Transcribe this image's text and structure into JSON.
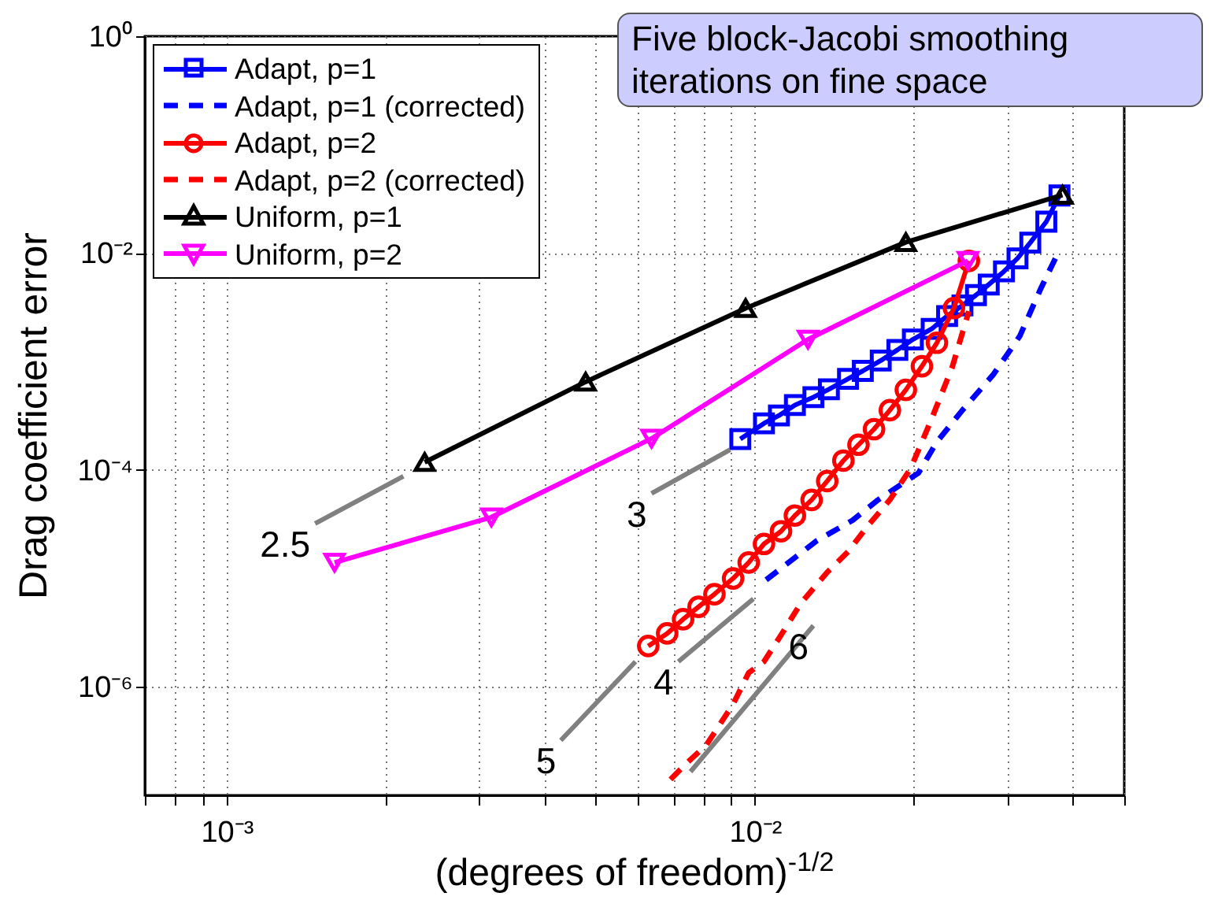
{
  "chart_data": {
    "type": "line",
    "xlabel": "(degrees of freedom)$^{-1/2}$",
    "ylabel": "Drag coefficient error",
    "log": "xy",
    "grid": true,
    "legend": "top left",
    "xlim": [
      0.0007,
      0.05
    ],
    "ylim": [
      1e-07,
      1
    ],
    "xticks": [
      {
        "value": 0.0007,
        "label": null
      },
      {
        "value": 0.0008,
        "label": null
      },
      {
        "value": 0.0009,
        "label": null
      },
      {
        "value": 0.001,
        "label": "10⁻³"
      },
      {
        "value": 0.002,
        "label": null
      },
      {
        "value": 0.003,
        "label": null
      },
      {
        "value": 0.004,
        "label": null
      },
      {
        "value": 0.005,
        "label": null
      },
      {
        "value": 0.006,
        "label": null
      },
      {
        "value": 0.007,
        "label": null
      },
      {
        "value": 0.008,
        "label": null
      },
      {
        "value": 0.009,
        "label": null
      },
      {
        "value": 0.01,
        "label": "10⁻²"
      },
      {
        "value": 0.02,
        "label": null
      },
      {
        "value": 0.03,
        "label": null
      },
      {
        "value": 0.04,
        "label": null
      },
      {
        "value": 0.05,
        "label": null
      }
    ],
    "yticks": [
      {
        "value": 1e-06,
        "label": "10⁻⁶"
      },
      {
        "value": 0.0001,
        "label": "10⁻⁴"
      },
      {
        "value": 0.01,
        "label": "10⁻²"
      },
      {
        "value": 1,
        "label": "10⁰"
      }
    ],
    "series": [
      {
        "name": "Adapt, p=1",
        "color": "#0000ff",
        "type": "line",
        "marker": "square",
        "line_style": "solid",
        "x": [
          0.00938,
          0.0104,
          0.0111,
          0.0119,
          0.0129,
          0.0138,
          0.015,
          0.016,
          0.0173,
          0.0186,
          0.0199,
          0.0216,
          0.0231,
          0.0247,
          0.0262,
          0.0277,
          0.0296,
          0.0314,
          0.0332,
          0.0356,
          0.0377
        ],
        "values": [
          0.000193,
          0.000269,
          0.000318,
          0.000397,
          0.000469,
          0.000555,
          0.000693,
          0.00082,
          0.00102,
          0.00128,
          0.0016,
          0.002,
          0.00263,
          0.00329,
          0.0041,
          0.00513,
          0.00678,
          0.00895,
          0.0125,
          0.0195,
          0.034
        ]
      },
      {
        "name": "Adapt, p=1 (corrected)",
        "color": "#0000ff",
        "type": "line",
        "marker": "none",
        "line_style": "dashed",
        "x": [
          0.0105,
          0.0131,
          0.0153,
          0.0171,
          0.0204,
          0.0221,
          0.0247,
          0.0283,
          0.0317,
          0.0347,
          0.0377
        ],
        "values": [
          9.7e-06,
          2.23e-05,
          3.44e-05,
          5.3e-05,
          9.4e-05,
          0.000182,
          0.000356,
          0.000766,
          0.00171,
          0.00464,
          0.0107
        ]
      },
      {
        "name": "Adapt, p=2",
        "color": "#ff0000",
        "type": "line",
        "marker": "circle",
        "line_style": "solid",
        "x": [
          0.00628,
          0.00682,
          0.00731,
          0.00782,
          0.00838,
          0.00909,
          0.00973,
          0.0104,
          0.0112,
          0.0119,
          0.0128,
          0.0137,
          0.0147,
          0.0157,
          0.0168,
          0.018,
          0.0193,
          0.0207,
          0.0221,
          0.0238,
          0.0254
        ],
        "values": [
          2.38e-06,
          3.11e-06,
          4.2e-06,
          5.48e-06,
          7.16e-06,
          1e-05,
          1.4e-05,
          2.08e-05,
          2.72e-05,
          3.8e-05,
          5.3e-05,
          7.9e-05,
          0.000122,
          0.000171,
          0.000238,
          0.000356,
          0.000548,
          0.000906,
          0.00149,
          0.00311,
          0.00847
        ]
      },
      {
        "name": "Adapt, p=2 (corrected)",
        "color": "#ff0000",
        "type": "line",
        "marker": "none",
        "line_style": "dashed",
        "x": [
          0.00692,
          0.0074,
          0.00809,
          0.00909,
          0.00973,
          0.0104,
          0.0112,
          0.0122,
          0.0137,
          0.015,
          0.0164,
          0.018,
          0.0197,
          0.0215,
          0.0236,
          0.0254
        ],
        "values": [
          1.4e-07,
          1.95e-07,
          2.91e-07,
          6.93e-07,
          1.35e-06,
          1.71e-06,
          3e-06,
          5.86e-06,
          1.14e-05,
          1.76e-05,
          3.11e-05,
          5.3e-05,
          0.000103,
          0.000281,
          0.000875,
          0.00291
        ]
      },
      {
        "name": "Uniform, p=1",
        "color": "#000000",
        "type": "line",
        "marker": "triangle",
        "line_style": "solid",
        "x": [
          0.00237,
          0.00478,
          0.0096,
          0.0193,
          0.0382
        ],
        "values": [
          0.000118,
          0.00065,
          0.0031,
          0.0126,
          0.0344
        ]
      },
      {
        "name": "Uniform, p=2",
        "color": "#ff00ff",
        "type": "line",
        "marker": "triangle-down",
        "line_style": "solid",
        "x": [
          0.0016,
          0.00317,
          0.00637,
          0.0126,
          0.0253
        ],
        "values": [
          1.4e-05,
          3.67e-05,
          0.000195,
          0.0016,
          0.0085
        ]
      },
      {
        "color": "#808080",
        "type": "line",
        "marker": "none",
        "line_style": "solid",
        "x": [
          0.00147,
          0.00216
        ],
        "values": [
          3.21e-05,
          8.75e-05
        ]
      },
      {
        "color": "#808080",
        "type": "line",
        "marker": "none",
        "line_style": "solid",
        "x": [
          0.00637,
          0.00897
        ],
        "values": [
          6.07e-05,
          0.000154
        ]
      },
      {
        "color": "#808080",
        "type": "line",
        "marker": "none",
        "line_style": "solid",
        "x": [
          0.00716,
          0.00993
        ],
        "values": [
          1.71e-06,
          6.49e-06
        ]
      },
      {
        "color": "#808080",
        "type": "line",
        "marker": "none",
        "line_style": "solid",
        "x": [
          0.00429,
          0.00594
        ],
        "values": [
          3.21e-07,
          1.71e-06
        ]
      },
      {
        "color": "#808080",
        "type": "line",
        "marker": "none",
        "line_style": "solid",
        "x": [
          0.00755,
          0.0129
        ],
        "values": [
          1.65e-07,
          3.67e-06
        ]
      }
    ],
    "annotations": [
      {
        "text": "2.5",
        "x": 0.00147,
        "y": 3.21e-05
      },
      {
        "text": "3",
        "x": 0.00637,
        "y": 6.07e-05
      },
      {
        "text": "4",
        "x": 0.00716,
        "y": 1.71e-06
      },
      {
        "text": "5",
        "x": 0.00429,
        "y": 3.21e-07
      },
      {
        "text": "6",
        "x": 0.0129,
        "y": 3.67e-06
      },
      "Five block-Jacobi smoothing iterations on fine space"
    ]
  }
}
